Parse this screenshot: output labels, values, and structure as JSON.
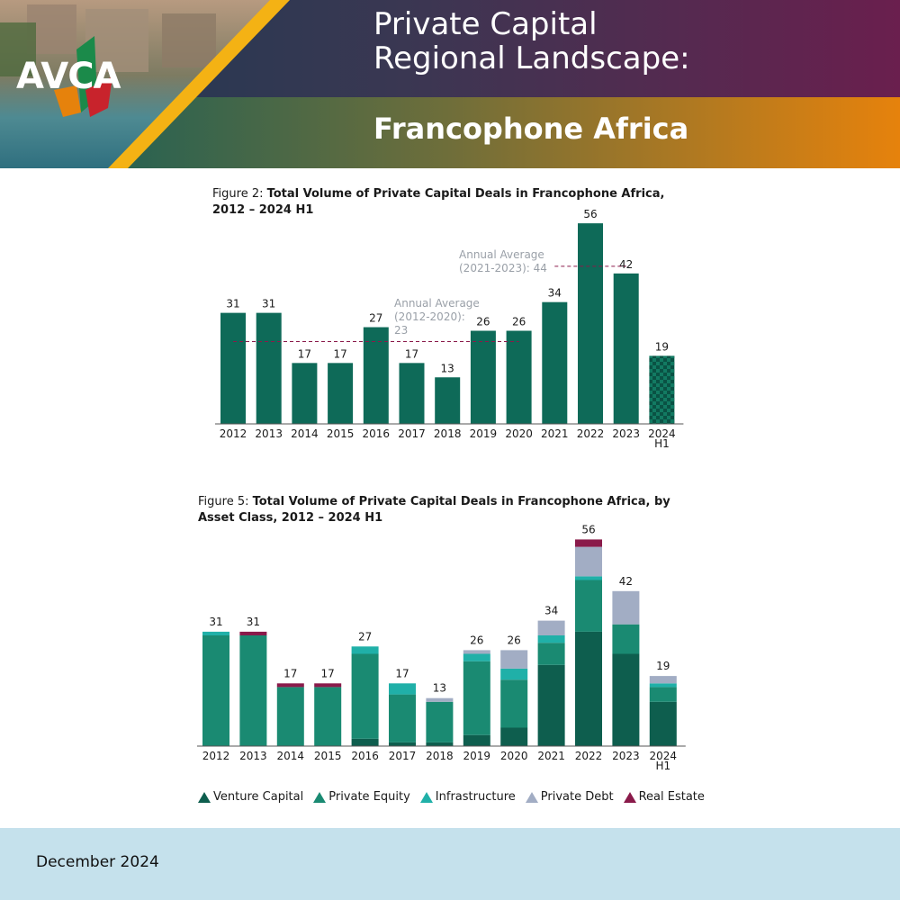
{
  "header": {
    "logo": "AVCA",
    "title_line1": "Private Capital",
    "title_line2": "Regional Landscape:",
    "subtitle": "Francophone Africa"
  },
  "figure2": {
    "prefix": "Figure 2: ",
    "title": "Total Volume of Private Capital Deals in Francophone Africa, 2012 – 2024 H1"
  },
  "figure5": {
    "prefix": "Figure 5: ",
    "title": "Total Volume of Private Capital Deals in Francophone Africa, by Asset Class, 2012 – 2024 H1"
  },
  "legend": [
    {
      "label": "Venture Capital",
      "color": "#0e5e4e"
    },
    {
      "label": "Private Equity",
      "color": "#1a8a72"
    },
    {
      "label": "Infrastructure",
      "color": "#20b0a8"
    },
    {
      "label": "Private Debt",
      "color": "#a2adc4"
    },
    {
      "label": "Real Estate",
      "color": "#8a1a4a"
    }
  ],
  "footer": {
    "date": "December 2024"
  },
  "chart_data": [
    {
      "type": "bar",
      "categories": [
        "2012",
        "2013",
        "2014",
        "2015",
        "2016",
        "2017",
        "2018",
        "2019",
        "2020",
        "2021",
        "2022",
        "2023",
        "2024\nH1"
      ],
      "values": [
        31,
        31,
        17,
        17,
        27,
        17,
        13,
        26,
        26,
        34,
        56,
        42,
        19
      ],
      "title": "Total Volume of Private Capital Deals in Francophone Africa, 2012 – 2024 H1",
      "ylim": [
        0,
        56
      ],
      "grid": false,
      "annotations": [
        {
          "text": "Annual Average\n(2012-2020):\n23",
          "value": 23,
          "from": "2012",
          "to": "2020"
        },
        {
          "text": "Annual Average\n(2021-2023): 44",
          "value": 44,
          "from": "2021",
          "to": "2023"
        }
      ],
      "colors": {
        "bar": "#0e6a58",
        "hatched_last": "#0e6a58",
        "avg_line": "#8a1a4a",
        "annotation_text": "#9aa0a8"
      }
    },
    {
      "type": "bar",
      "stacked": true,
      "categories": [
        "2012",
        "2013",
        "2014",
        "2015",
        "2016",
        "2017",
        "2018",
        "2019",
        "2020",
        "2021",
        "2022",
        "2023",
        "2024\nH1"
      ],
      "totals": [
        31,
        31,
        17,
        17,
        27,
        17,
        13,
        26,
        26,
        34,
        56,
        42,
        19
      ],
      "series": [
        {
          "name": "Venture Capital",
          "values": [
            0,
            0,
            0,
            0,
            2,
            1,
            1,
            3,
            5,
            22,
            31,
            25,
            12
          ]
        },
        {
          "name": "Private Equity",
          "values": [
            30,
            30,
            16,
            16,
            23,
            13,
            11,
            20,
            13,
            6,
            14,
            8,
            4
          ]
        },
        {
          "name": "Infrastructure",
          "values": [
            1,
            0,
            0,
            0,
            2,
            3,
            0,
            2,
            3,
            2,
            1,
            0,
            1
          ]
        },
        {
          "name": "Private Debt",
          "values": [
            0,
            0,
            0,
            0,
            0,
            0,
            1,
            1,
            5,
            4,
            8,
            9,
            2
          ]
        },
        {
          "name": "Real Estate",
          "values": [
            0,
            1,
            1,
            1,
            0,
            0,
            0,
            0,
            0,
            0,
            2,
            0,
            0
          ]
        }
      ],
      "title": "Total Volume of Private Capital Deals in Francophone Africa, by Asset Class, 2012 – 2024 H1",
      "ylim": [
        0,
        56
      ],
      "grid": false,
      "legend_position": "bottom"
    }
  ]
}
